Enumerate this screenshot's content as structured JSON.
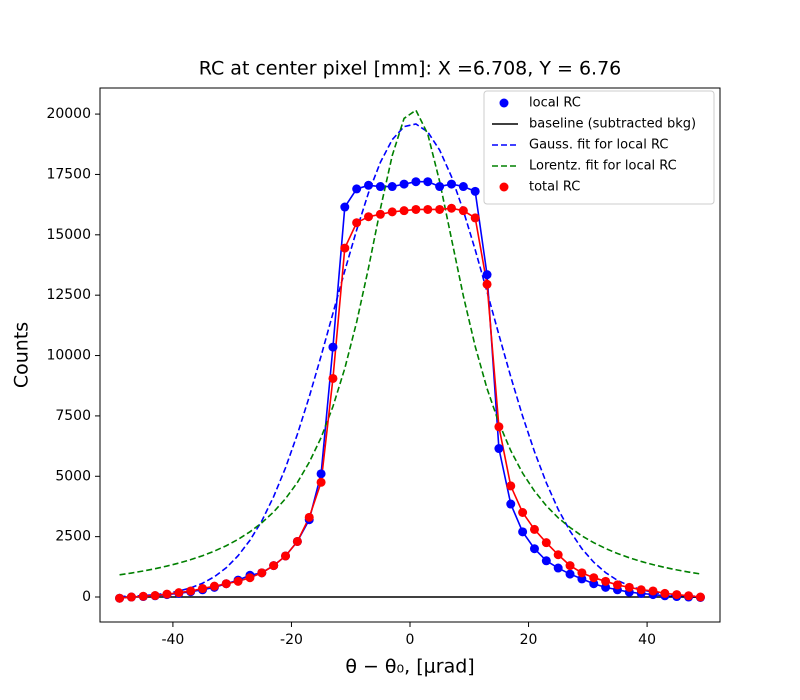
{
  "chart_data": {
    "type": "line",
    "title": "RC at center pixel [mm]: X =6.708, Y = 6.76",
    "xlabel": "θ − θ₀, [μrad]",
    "ylabel": "Counts",
    "xlim": [
      -52.3,
      52.3
    ],
    "ylim": [
      -1035,
      21080
    ],
    "xticks": [
      -40,
      -20,
      0,
      20,
      40
    ],
    "yticks": [
      0,
      2500,
      5000,
      7500,
      10000,
      12500,
      15000,
      17500,
      20000
    ],
    "legend": "upper right",
    "x": [
      -49,
      -47,
      -45,
      -43,
      -41,
      -39,
      -37,
      -35,
      -33,
      -31,
      -29,
      -27,
      -25,
      -23,
      -21,
      -19,
      -17,
      -15,
      -13,
      -11,
      -9,
      -7,
      -5,
      -3,
      -1,
      1,
      3,
      5,
      7,
      9,
      11,
      13,
      15,
      17,
      19,
      21,
      23,
      25,
      27,
      29,
      31,
      33,
      35,
      37,
      39,
      41,
      43,
      45,
      47,
      49
    ],
    "series": [
      {
        "name": "local RC",
        "color": "#0000ff",
        "line": "solid",
        "marker": true,
        "values": [
          -50,
          0,
          20,
          50,
          100,
          150,
          220,
          300,
          400,
          550,
          700,
          900,
          1000,
          1300,
          1700,
          2300,
          3200,
          5100,
          10350,
          16150,
          16900,
          17050,
          17000,
          17000,
          17100,
          17200,
          17200,
          17000,
          17100,
          17000,
          16800,
          13350,
          6150,
          3850,
          2700,
          2000,
          1500,
          1200,
          950,
          750,
          550,
          400,
          300,
          200,
          150,
          100,
          50,
          20,
          0,
          -20
        ]
      },
      {
        "name": "baseline (subtracted bkg)",
        "color": "#000000",
        "line": "solid",
        "marker": false,
        "x": [
          -49,
          49
        ],
        "values": [
          0,
          0
        ]
      },
      {
        "name": "Gauss. fit for local RC",
        "color": "#0000ff",
        "line": "dashed",
        "marker": false,
        "values": [
          20,
          35,
          58,
          96,
          155,
          245,
          378,
          570,
          840,
          1210,
          1710,
          2350,
          3150,
          4160,
          5350,
          6740,
          8290,
          9980,
          11750,
          13510,
          15200,
          16740,
          18000,
          18940,
          19480,
          19590,
          19260,
          18510,
          17410,
          16000,
          14380,
          12640,
          10860,
          9120,
          7490,
          6020,
          4730,
          3630,
          2730,
          2000,
          1440,
          1010,
          690,
          465,
          305,
          195,
          123,
          75,
          45,
          26
        ]
      },
      {
        "name": "Lorentz. fit for local RC",
        "color": "#008000",
        "line": "dashed",
        "marker": false,
        "values": [
          918,
          993,
          1077,
          1172,
          1281,
          1405,
          1547,
          1710,
          1902,
          2124,
          2388,
          2700,
          3074,
          3525,
          4073,
          4742,
          5580,
          6600,
          7890,
          9466,
          11387,
          13630,
          16070,
          18280,
          19820,
          20160,
          19170,
          17210,
          14830,
          12470,
          10380,
          8630,
          7210,
          6060,
          5130,
          4390,
          3780,
          3280,
          2880,
          2530,
          2250,
          2010,
          1800,
          1625,
          1473,
          1340,
          1225,
          1123,
          1034,
          954
        ]
      },
      {
        "name": "total RC",
        "color": "#ff0000",
        "line": "solid",
        "marker": true,
        "values": [
          -50,
          0,
          30,
          60,
          120,
          180,
          250,
          350,
          450,
          550,
          650,
          800,
          1000,
          1300,
          1700,
          2300,
          3300,
          4750,
          9050,
          14450,
          15500,
          15750,
          15850,
          15950,
          16000,
          16050,
          16050,
          16050,
          16100,
          16000,
          15700,
          12950,
          7050,
          4600,
          3500,
          2800,
          2250,
          1750,
          1300,
          1000,
          800,
          650,
          500,
          400,
          300,
          250,
          150,
          100,
          50,
          0
        ]
      }
    ]
  }
}
